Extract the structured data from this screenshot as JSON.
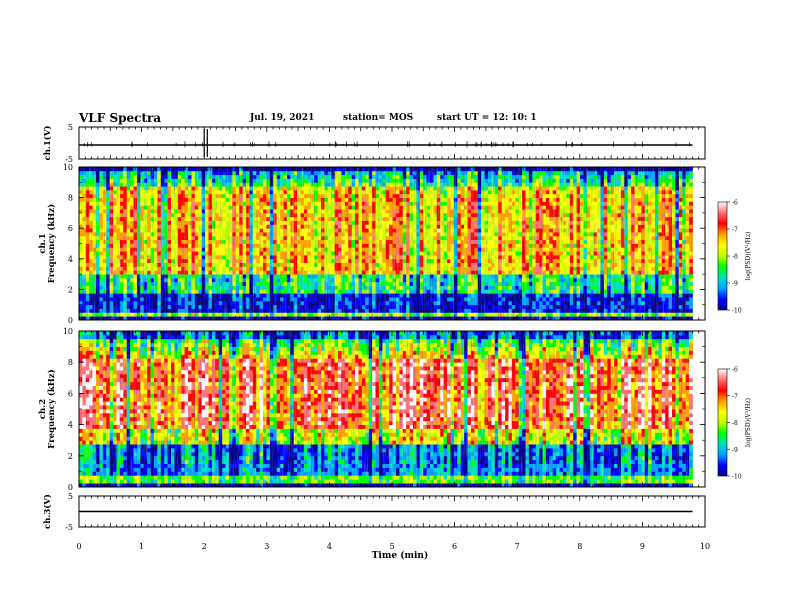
{
  "header": {
    "title": "VLF Spectra",
    "date": "Jul. 19, 2021",
    "station": "station= MOS",
    "start": "start UT = 12: 10: 1"
  },
  "chart_data": [
    {
      "type": "line",
      "name": "ch1-waveform",
      "ylabel": "ch.1(V)",
      "ylim": [
        -5,
        5
      ],
      "yticks": [
        "5",
        "-5"
      ],
      "xlim": [
        0,
        10
      ],
      "series": [
        {
          "values_description_only": false,
          "x": [
            0,
            9.8
          ],
          "y": [
            0,
            0
          ]
        }
      ]
    },
    {
      "type": "heatmap",
      "name": "ch1-spectrogram",
      "ylabel": "ch.1 Frequency (kHz)",
      "ylim": [
        0,
        10
      ],
      "yticks": [
        "0",
        "2",
        "4",
        "6",
        "8",
        "10"
      ],
      "xlim": [
        0,
        10
      ],
      "data_extent_x": [
        0,
        9.8
      ]
    },
    {
      "type": "heatmap",
      "name": "ch2-spectrogram",
      "ylabel": "ch.2 Frequency (kHz)",
      "ylim": [
        0,
        10
      ],
      "yticks": [
        "0",
        "2",
        "4",
        "6",
        "8",
        "10"
      ],
      "xlim": [
        0,
        10
      ],
      "data_extent_x": [
        0,
        9.8
      ]
    },
    {
      "type": "line",
      "name": "ch3-waveform",
      "ylabel": "ch.3(V)",
      "ylim": [
        -5,
        5
      ],
      "yticks": [
        "5",
        "-5"
      ],
      "xlim": [
        0,
        10
      ],
      "series": [
        {
          "x": [
            0,
            9.8
          ],
          "y": [
            0,
            0
          ]
        }
      ]
    }
  ],
  "xaxis": {
    "label": "Time (min)",
    "ticks": [
      "0",
      "1",
      "2",
      "3",
      "4",
      "5",
      "6",
      "7",
      "8",
      "9",
      "10"
    ]
  },
  "colorbar": {
    "label": "log(PSD)(V²/Hz)",
    "range": [
      -10,
      -6
    ],
    "ticks": [
      "-6",
      "-7",
      "-8",
      "-9",
      "-10"
    ],
    "colors": [
      "#00008b",
      "#0000ff",
      "#00a0ff",
      "#00e0c0",
      "#00ff00",
      "#c0ff00",
      "#ffff00",
      "#ffa000",
      "#ff0000",
      "#ff7070",
      "#ffffff"
    ]
  }
}
